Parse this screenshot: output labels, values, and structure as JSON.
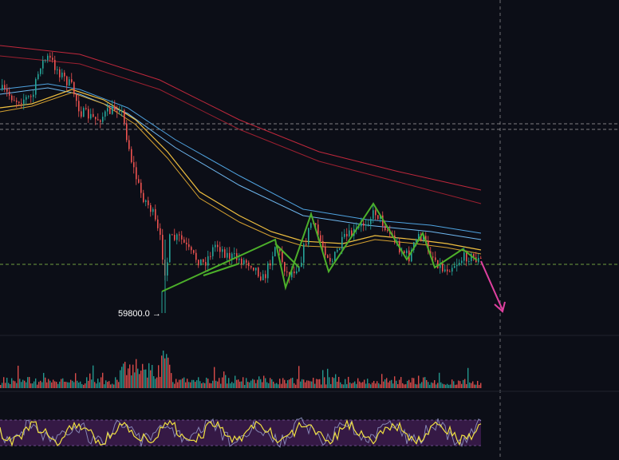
{
  "chart_data": {
    "type": "candlestick",
    "annotation": {
      "text": "59800.0 →",
      "price": 59800
    },
    "colors": {
      "background": "#0c0e17",
      "up": "#26a69a",
      "down": "#ef5350",
      "pattern": "#4caf2a",
      "arrow": "#e040a0",
      "ma_fast": "#f0c040",
      "ma_fast2": "#d4a030",
      "ma_mid": "#4fa3e0",
      "ma_mid2": "#6fb8f0",
      "ma_slow": "#c0283c",
      "ma_slow2": "#9c2030",
      "rsi_band": "#3a1b4a",
      "rsi_line": "#f0e040",
      "rsi_line2": "#9aa0d0",
      "guide_white": "#b0b0b0",
      "guide_green": "#8bc34a"
    },
    "grid": false,
    "panes": [
      "price",
      "volume",
      "rsi"
    ]
  }
}
